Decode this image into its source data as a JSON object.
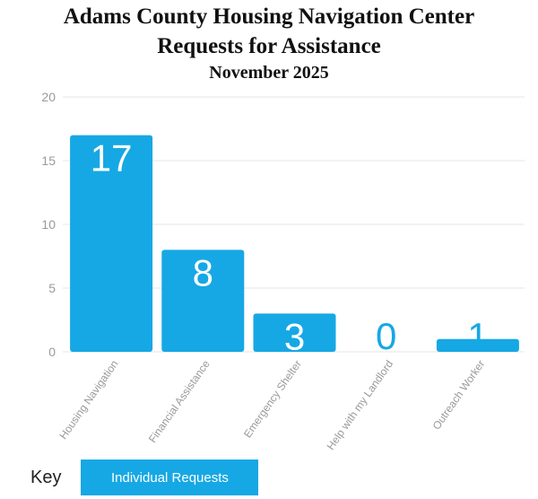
{
  "header": {
    "title_line1": "Adams County Housing Navigation Center",
    "title_line2": "Requests for Assistance",
    "subtitle": "November 2025"
  },
  "legend": {
    "key_label": "Key",
    "series_label": "Individual Requests"
  },
  "colors": {
    "bar": "#16a8e4",
    "grid": "#e4e4e4",
    "axis_text": "#9a9a9a",
    "value_on_bar": "#ffffff",
    "value_off_bar": "#16a8e4"
  },
  "chart_data": {
    "type": "bar",
    "title": "Adams County Housing Navigation Center Requests for Assistance",
    "subtitle": "November 2025",
    "categories": [
      "Housing Navigation",
      "Financial Assistance",
      "Emergency Shelter",
      "Help with my Landlord",
      "Outreach Worker"
    ],
    "series": [
      {
        "name": "Individual Requests",
        "values": [
          17,
          8,
          3,
          0,
          1
        ]
      }
    ],
    "xlabel": "",
    "ylabel": "",
    "ylim": [
      0,
      20
    ],
    "yticks": [
      0,
      5,
      10,
      15,
      20
    ],
    "grid": true,
    "legend_position": "bottom-left"
  }
}
